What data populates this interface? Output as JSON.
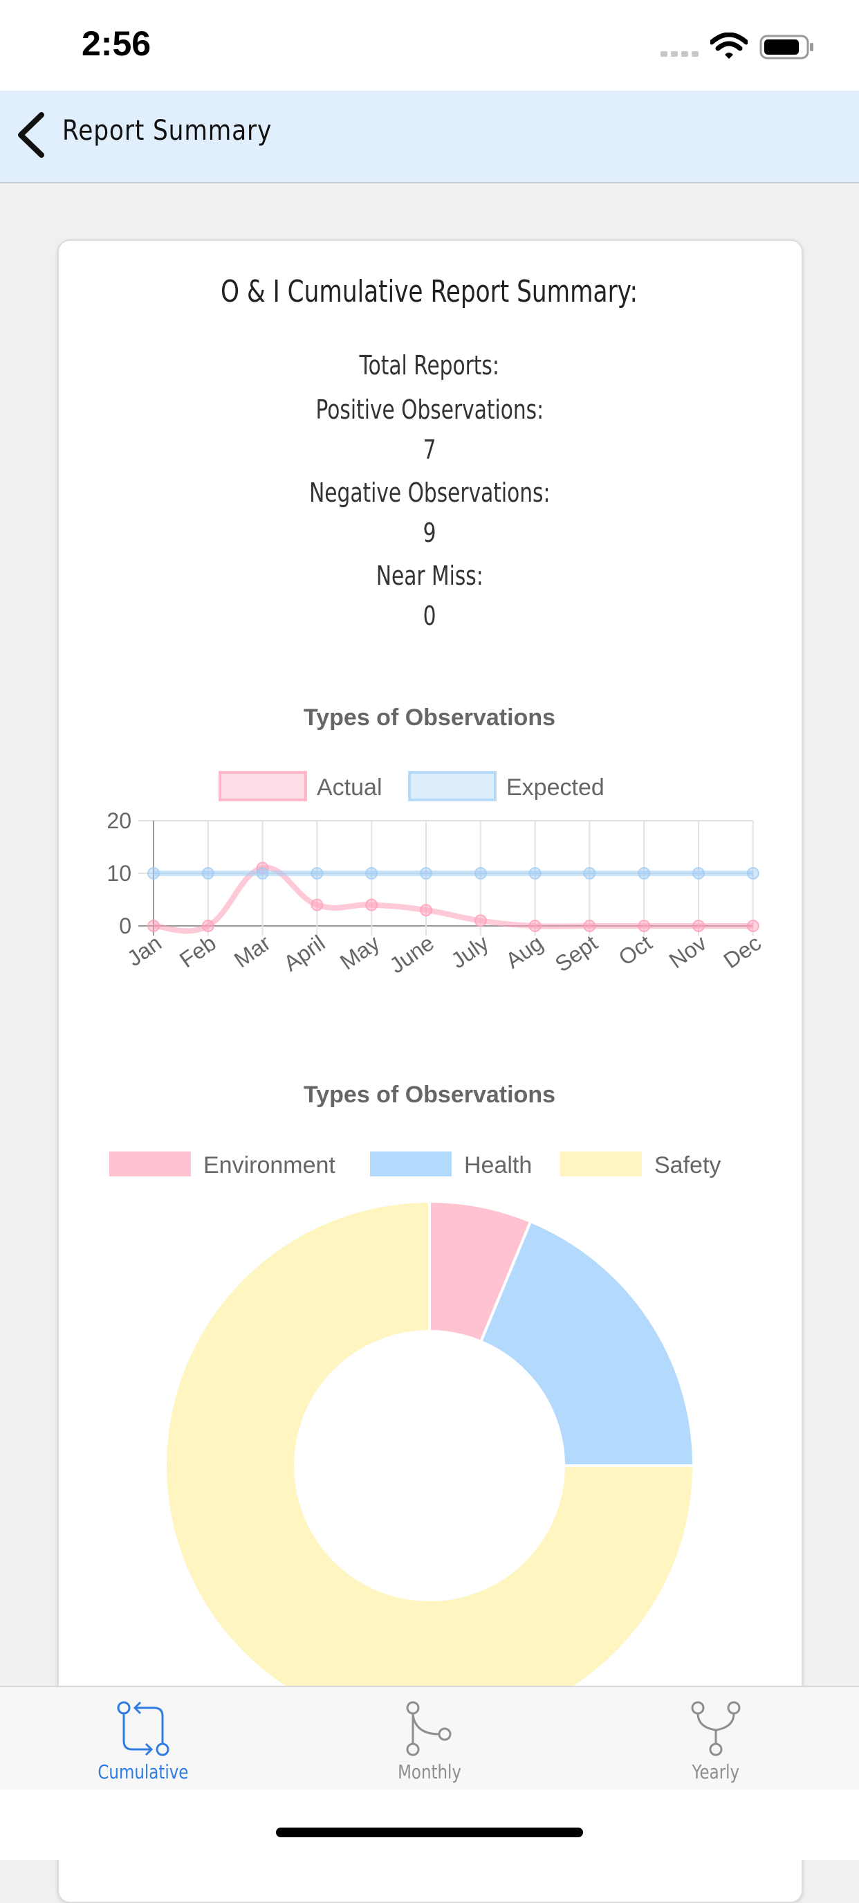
{
  "status_bar": {
    "time": "2:56"
  },
  "nav": {
    "title": "Report Summary"
  },
  "report": {
    "title": "O & I Cumulative Report Summary:",
    "total_label": "Total Reports:",
    "positive_label": "Positive Observations:",
    "positive_value": "7",
    "negative_label": "Negative Observations:",
    "negative_value": "9",
    "near_miss_label": "Near Miss:",
    "near_miss_value": "0"
  },
  "chart_data": [
    {
      "type": "line",
      "title": "Types of Observations",
      "categories": [
        "Jan",
        "Feb",
        "Mar",
        "April",
        "May",
        "June",
        "July",
        "Aug",
        "Sept",
        "Oct",
        "Nov",
        "Dec"
      ],
      "series": [
        {
          "name": "Actual",
          "values": [
            0,
            0,
            11,
            4,
            4,
            3,
            1,
            0,
            0,
            0,
            0,
            0
          ],
          "color": "#ff9fb8"
        },
        {
          "name": "Expected",
          "values": [
            10,
            10,
            10,
            10,
            10,
            10,
            10,
            10,
            10,
            10,
            10,
            10
          ],
          "color": "#9fcdf5"
        }
      ],
      "yticks": [
        0,
        10,
        20
      ],
      "ylim": [
        0,
        20
      ],
      "legend": "top",
      "grid": true
    },
    {
      "type": "pie",
      "title": "Types of Observations",
      "labels": [
        "Environment",
        "Health",
        "Safety"
      ],
      "values": [
        1,
        3,
        12
      ],
      "colors": [
        "#ffc2d1",
        "#b3d9fd",
        "#fff5c0"
      ],
      "legend": "top"
    }
  ],
  "tabs": [
    {
      "label": "Cumulative",
      "icon": "compare-arrows-icon",
      "active": true
    },
    {
      "label": "Monthly",
      "icon": "git-merge-icon",
      "active": false
    },
    {
      "label": "Yearly",
      "icon": "git-fork-icon",
      "active": false
    }
  ]
}
